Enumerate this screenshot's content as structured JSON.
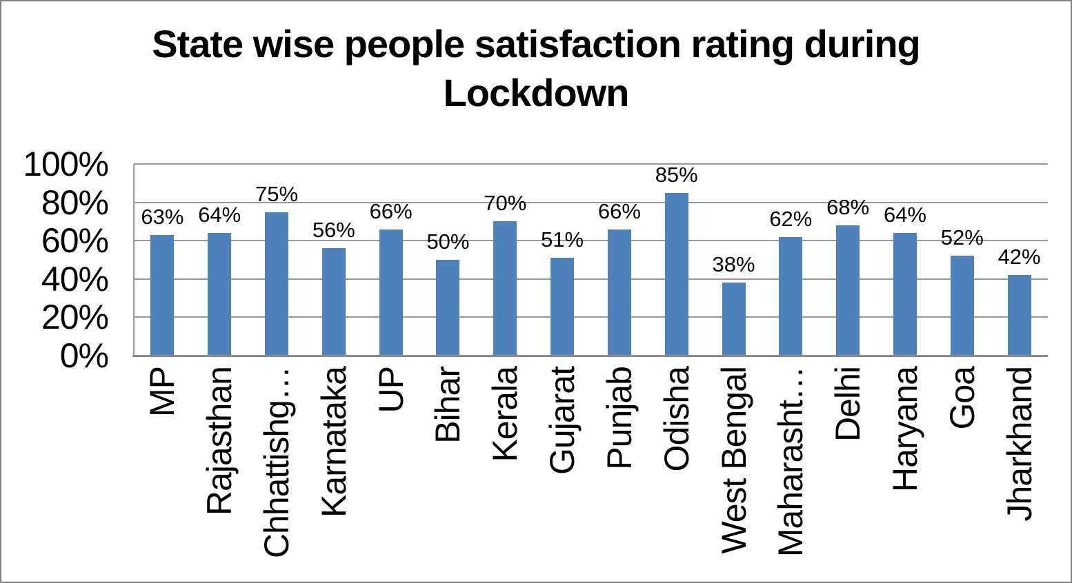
{
  "chart_data": {
    "type": "bar",
    "title": "State wise people satisfaction rating during Lockdown",
    "title_lines": [
      "State wise people satisfaction rating during",
      "Lockdown"
    ],
    "categories": [
      "MP",
      "Rajasthan",
      "Chhattishg…",
      "Karnataka",
      "UP",
      "Bihar",
      "Kerala",
      "Gujarat",
      "Punjab",
      "Odisha",
      "West Bengal",
      "Maharasht…",
      "Delhi",
      "Haryana",
      "Goa",
      "Jharkhand"
    ],
    "values": [
      63,
      64,
      75,
      56,
      66,
      50,
      70,
      51,
      66,
      85,
      38,
      62,
      68,
      64,
      52,
      42
    ],
    "value_labels": [
      "63%",
      "64%",
      "75%",
      "56%",
      "66%",
      "50%",
      "70%",
      "51%",
      "66%",
      "85%",
      "38%",
      "62%",
      "68%",
      "64%",
      "52%",
      "42%"
    ],
    "xlabel": "",
    "ylabel": "",
    "y_axis": {
      "min": 0,
      "max": 100,
      "step": 20,
      "ticks": [
        "0%",
        "20%",
        "40%",
        "60%",
        "80%",
        "100%"
      ]
    },
    "grid": true,
    "legend": false,
    "colors": {
      "bar_fill": "#4F81BD",
      "gridline": "#9a9a9a",
      "axis_line": "#8c8c8c",
      "chart_border": "#7f7f7f",
      "background": "#ffffff",
      "text": "#000000"
    }
  }
}
